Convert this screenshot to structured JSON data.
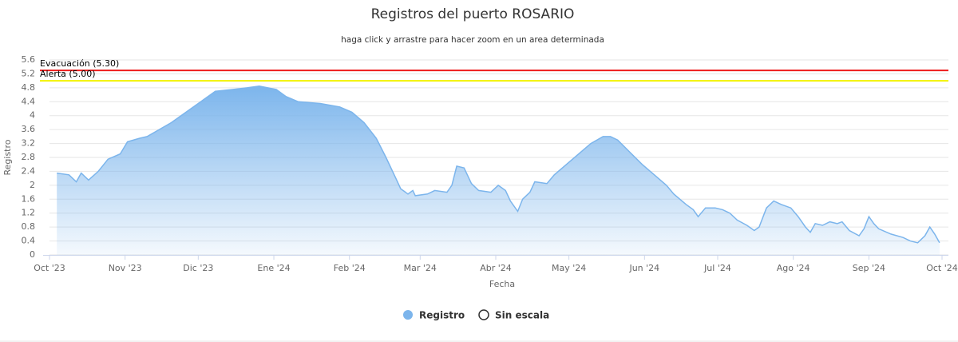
{
  "chart_data": {
    "type": "area",
    "title": "Registros del puerto ROSARIO",
    "subtitle": "haga click y arrastre para hacer zoom en un area determinada",
    "x_label": "Fecha",
    "y_label": "Registro",
    "xlim": [
      0,
      366
    ],
    "xticks": [
      {
        "value": 0,
        "label": "Oct '23"
      },
      {
        "value": 31,
        "label": "Nov '23"
      },
      {
        "value": 61,
        "label": "Dic '23"
      },
      {
        "value": 92,
        "label": "Ene '24"
      },
      {
        "value": 123,
        "label": "Feb '24"
      },
      {
        "value": 152,
        "label": "Mar '24"
      },
      {
        "value": 183,
        "label": "Abr '24"
      },
      {
        "value": 213,
        "label": "May '24"
      },
      {
        "value": 244,
        "label": "Jun '24"
      },
      {
        "value": 274,
        "label": "Jul '24"
      },
      {
        "value": 305,
        "label": "Ago '24"
      },
      {
        "value": 336,
        "label": "Sep '24"
      },
      {
        "value": 366,
        "label": "Oct '24"
      }
    ],
    "ylim": [
      0,
      5.6
    ],
    "yticks": [
      0,
      0.4,
      0.8,
      1.2,
      1.6,
      2,
      2.4,
      2.8,
      3.2,
      3.6,
      4,
      4.4,
      4.8,
      5.2,
      5.6
    ],
    "grid": true,
    "plot_lines": [
      {
        "label": "Evacuación (5.30)",
        "value": 5.3,
        "color": "#ee1c1c"
      },
      {
        "label": "Alerta (5.00)",
        "value": 5.0,
        "color": "#f2f200"
      }
    ],
    "series": [
      {
        "name": "Registro",
        "color": "#7cb5ec",
        "x": [
          3,
          8,
          11,
          13,
          16,
          20,
          24,
          29,
          32,
          37,
          40,
          45,
          50,
          55,
          62,
          68,
          75,
          81,
          86,
          93,
          97,
          102,
          111,
          119,
          124,
          129,
          134,
          138,
          142,
          144,
          147,
          149,
          150,
          155,
          158,
          163,
          165,
          167,
          170,
          173,
          176,
          181,
          184,
          187,
          189,
          192,
          194,
          197,
          199,
          204,
          207,
          212,
          217,
          222,
          227,
          230,
          233,
          238,
          243,
          248,
          253,
          256,
          261,
          264,
          266,
          269,
          273,
          276,
          279,
          282,
          286,
          289,
          291,
          294,
          297,
          300,
          304,
          307,
          310,
          312,
          314,
          317,
          320,
          323,
          325,
          328,
          332,
          334,
          336,
          338,
          340,
          345,
          350,
          353,
          356,
          359,
          361,
          363,
          365
        ],
        "values": [
          2.35,
          2.3,
          2.1,
          2.35,
          2.15,
          2.4,
          2.75,
          2.9,
          3.25,
          3.35,
          3.4,
          3.6,
          3.8,
          4.05,
          4.4,
          4.7,
          4.75,
          4.8,
          4.85,
          4.75,
          4.55,
          4.4,
          4.35,
          4.25,
          4.1,
          3.8,
          3.35,
          2.8,
          2.2,
          1.9,
          1.75,
          1.85,
          1.7,
          1.75,
          1.85,
          1.8,
          2.0,
          2.55,
          2.5,
          2.05,
          1.85,
          1.8,
          2.0,
          1.85,
          1.55,
          1.25,
          1.6,
          1.8,
          2.1,
          2.05,
          2.3,
          2.6,
          2.9,
          3.2,
          3.4,
          3.4,
          3.3,
          2.95,
          2.6,
          2.3,
          2.0,
          1.75,
          1.45,
          1.3,
          1.1,
          1.35,
          1.35,
          1.3,
          1.2,
          1.0,
          0.85,
          0.7,
          0.8,
          1.35,
          1.55,
          1.45,
          1.35,
          1.1,
          0.8,
          0.65,
          0.9,
          0.85,
          0.95,
          0.9,
          0.95,
          0.7,
          0.55,
          0.75,
          1.1,
          0.9,
          0.75,
          0.6,
          0.5,
          0.4,
          0.35,
          0.55,
          0.8,
          0.6,
          0.35
        ]
      }
    ],
    "extra_legend": [
      "Sin escala"
    ]
  }
}
